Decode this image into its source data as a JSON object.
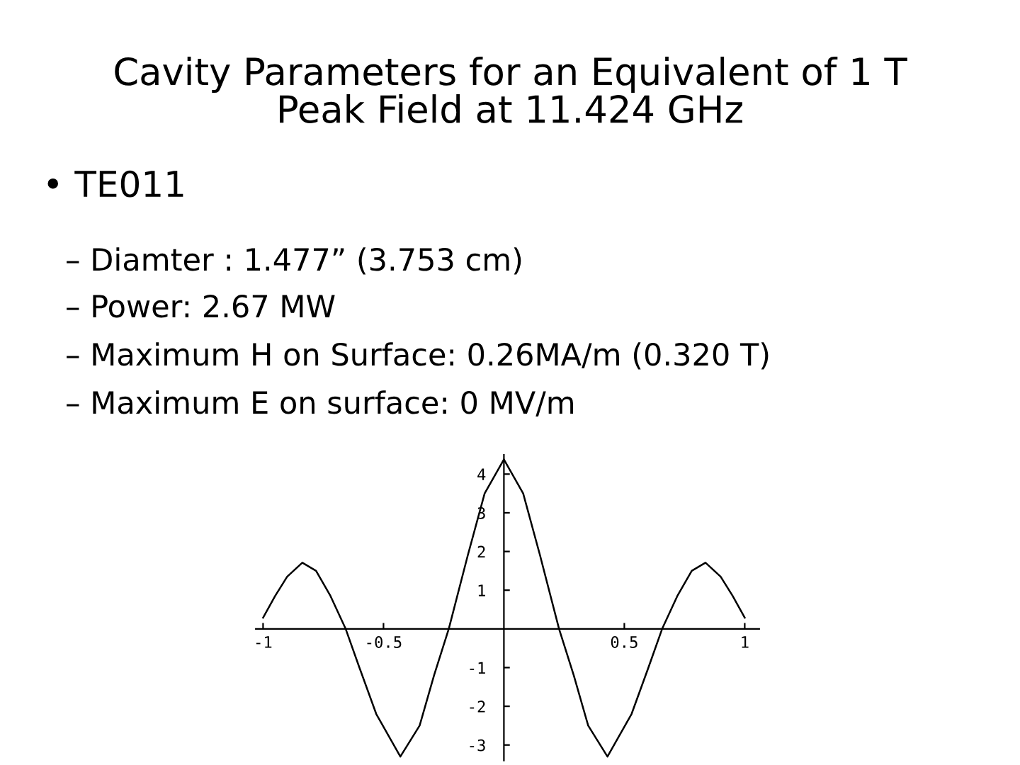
{
  "chart_data": {
    "type": "line",
    "title": "Cavity Parameters for an Equivalent of 1 T\nPeak Field at 11.424 GHz",
    "annotations": [
      "• TE011",
      "– Diamter : 1.477” (3.753 cm)",
      "– Power: 2.67 MW",
      "– Maximum H on Surface: 0.26MA/m (0.320 T)",
      "– Maximum E on surface: 0 MV/m"
    ],
    "x": [
      -1,
      -0.95,
      -0.9,
      -0.837,
      -0.78,
      -0.72,
      -0.657,
      -0.6,
      -0.53,
      -0.43,
      -0.35,
      -0.29,
      -0.229,
      -0.15,
      -0.08,
      0,
      0.08,
      0.15,
      0.229,
      0.29,
      0.35,
      0.43,
      0.53,
      0.6,
      0.657,
      0.72,
      0.78,
      0.837,
      0.9,
      0.95,
      1
    ],
    "series": [
      {
        "color": "#000000",
        "values": [
          0.29,
          0.85,
          1.35,
          1.71,
          1.5,
          0.85,
          0,
          -1.0,
          -2.2,
          -3.3,
          -2.5,
          -1.2,
          0,
          1.9,
          3.5,
          4.38,
          3.5,
          1.9,
          0,
          -1.2,
          -2.5,
          -3.3,
          -2.2,
          -1.0,
          0,
          0.85,
          1.5,
          1.71,
          1.35,
          0.85,
          0.29
        ]
      }
    ],
    "xlim": [
      -1.03,
      1.06
    ],
    "ylim": [
      -3.4,
      4.5
    ],
    "xticks": [
      -1,
      -0.5,
      0.5,
      1
    ],
    "yticks": [
      -3,
      -2,
      -1,
      1,
      2,
      3,
      4
    ],
    "grid": false,
    "legend": false,
    "marker": "none",
    "line_style": "solid"
  }
}
